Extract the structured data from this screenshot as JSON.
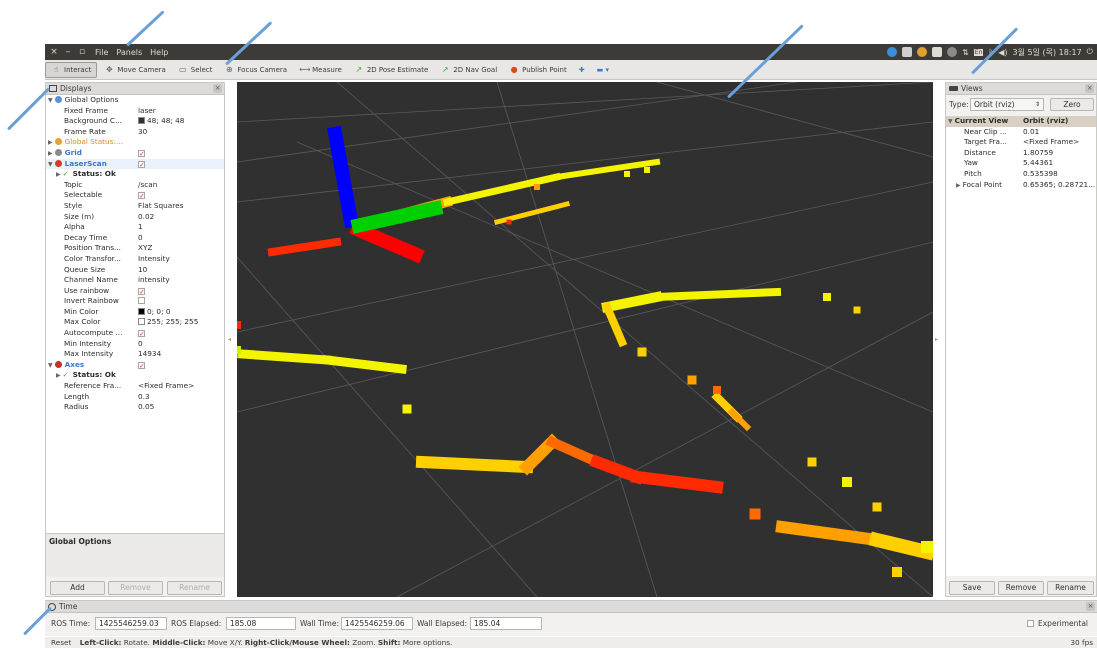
{
  "window": {
    "controls": [
      "×",
      "–",
      "▫"
    ],
    "menu": [
      "File",
      "Panels",
      "Help"
    ],
    "tray": {
      "lang": "En",
      "clock": "3월 5일 (목) 18:17"
    }
  },
  "toolbar": {
    "tools": [
      {
        "label": "Interact",
        "icon": "hand-icon",
        "glyph": "☝",
        "active": true
      },
      {
        "label": "Move Camera",
        "icon": "move-camera-icon",
        "glyph": "✥",
        "active": false
      },
      {
        "label": "Select",
        "icon": "select-icon",
        "glyph": "▭",
        "active": false
      },
      {
        "label": "Focus Camera",
        "icon": "focus-camera-icon",
        "glyph": "⊕",
        "active": false
      },
      {
        "label": "Measure",
        "icon": "measure-icon",
        "glyph": "⟷",
        "active": false
      },
      {
        "label": "2D Pose Estimate",
        "icon": "pose-estimate-icon",
        "glyph": "↗",
        "active": false
      },
      {
        "label": "2D Nav Goal",
        "icon": "nav-goal-icon",
        "glyph": "↗",
        "active": false
      },
      {
        "label": "Publish Point",
        "icon": "publish-point-icon",
        "glyph": "●",
        "active": false
      }
    ],
    "extra_glyph": "✚",
    "more_glyph": "▬ ▾"
  },
  "displays": {
    "title": "Displays",
    "rows": [
      {
        "indent": 0,
        "marker": "▼",
        "iconc": "#5b8fd6",
        "key": "Global Options",
        "val": "",
        "color": "#2b2b2b"
      },
      {
        "indent": 2,
        "key": "Fixed Frame",
        "val": "laser"
      },
      {
        "indent": 2,
        "key": "Background C...",
        "val": "48; 48; 48",
        "swatch": "#303030"
      },
      {
        "indent": 2,
        "key": "Frame Rate",
        "val": "30"
      },
      {
        "indent": 0,
        "marker": "▶",
        "iconc": "#e8a030",
        "key": "Global Status:...",
        "val": "",
        "color": "#d98a1a"
      },
      {
        "indent": 0,
        "marker": "▶",
        "iconc": "#8a8a8a",
        "key": "Grid",
        "val": "",
        "check": true,
        "color": "#3a78c8",
        "bold": true
      },
      {
        "indent": 0,
        "marker": "▼",
        "iconc": "#d23b2a",
        "key": "LaserScan",
        "val": "",
        "check": true,
        "color": "#3a78c8",
        "bold": true,
        "highlight": true
      },
      {
        "indent": 1,
        "marker": "▶",
        "iconc": "#3a9a3a",
        "key": "Status: Ok",
        "val": "",
        "bold": true,
        "tick": true
      },
      {
        "indent": 2,
        "key": "Topic",
        "val": "/scan"
      },
      {
        "indent": 2,
        "key": "Selectable",
        "val": "",
        "check": true
      },
      {
        "indent": 2,
        "key": "Style",
        "val": "Flat Squares"
      },
      {
        "indent": 2,
        "key": "Size (m)",
        "val": "0.02"
      },
      {
        "indent": 2,
        "key": "Alpha",
        "val": "1"
      },
      {
        "indent": 2,
        "key": "Decay Time",
        "val": "0"
      },
      {
        "indent": 2,
        "key": "Position Trans...",
        "val": "XYZ"
      },
      {
        "indent": 2,
        "key": "Color Transfor...",
        "val": "Intensity"
      },
      {
        "indent": 2,
        "key": "Queue Size",
        "val": "10"
      },
      {
        "indent": 2,
        "key": "Channel Name",
        "val": "intensity"
      },
      {
        "indent": 2,
        "key": "Use rainbow",
        "val": "",
        "check": true
      },
      {
        "indent": 2,
        "key": "Invert Rainbow",
        "val": "",
        "check": false
      },
      {
        "indent": 2,
        "key": "Min Color",
        "val": "0; 0; 0",
        "swatch": "#000000"
      },
      {
        "indent": 2,
        "key": "Max Color",
        "val": "255; 255; 255",
        "swatch": "#ffffff"
      },
      {
        "indent": 2,
        "key": "Autocompute ...",
        "val": "",
        "check": true
      },
      {
        "indent": 2,
        "key": "Min Intensity",
        "val": "0"
      },
      {
        "indent": 2,
        "key": "Max Intensity",
        "val": "14934"
      },
      {
        "indent": 0,
        "marker": "▼",
        "iconc": "#c83030",
        "key": "Axes",
        "val": "",
        "check": true,
        "color": "#3a78c8",
        "bold": true
      },
      {
        "indent": 1,
        "marker": "▶",
        "iconc": "#3a9a3a",
        "key": "Status: Ok",
        "val": "",
        "bold": true,
        "tick": true
      },
      {
        "indent": 2,
        "key": "Reference Fra...",
        "val": "<Fixed Frame>"
      },
      {
        "indent": 2,
        "key": "Length",
        "val": "0.3"
      },
      {
        "indent": 2,
        "key": "Radius",
        "val": "0.05"
      }
    ],
    "description_title": "Global Options",
    "add": "Add",
    "remove": "Remove",
    "rename": "Rename"
  },
  "views": {
    "title": "Views",
    "type_label": "Type:",
    "type_value": "Orbit (rviz)",
    "zero": "Zero",
    "rows": [
      {
        "indent": 0,
        "marker": "▼",
        "key": "Current View",
        "val": "Orbit (rviz)",
        "header": true
      },
      {
        "indent": 2,
        "key": "Near Clip ...",
        "val": "0.01"
      },
      {
        "indent": 2,
        "key": "Target Fra...",
        "val": "<Fixed Frame>"
      },
      {
        "indent": 2,
        "key": "Distance",
        "val": "1.80759"
      },
      {
        "indent": 2,
        "key": "Yaw",
        "val": "5.44361"
      },
      {
        "indent": 2,
        "key": "Pitch",
        "val": "0.535398"
      },
      {
        "indent": 1,
        "marker": "▶",
        "key": "Focal Point",
        "val": "0.65365; 0.28721..."
      }
    ],
    "save": "Save",
    "remove": "Remove",
    "rename": "Rename"
  },
  "time": {
    "title": "Time",
    "ros_time_label": "ROS Time:",
    "ros_time": "1425546259.03",
    "ros_elapsed_label": "ROS Elapsed:",
    "ros_elapsed": "185.08",
    "wall_time_label": "Wall Time:",
    "wall_time": "1425546259.06",
    "wall_elapsed_label": "Wall Elapsed:",
    "wall_elapsed": "185.04",
    "experimental": "Experimental"
  },
  "status": {
    "reset": "Reset",
    "b1": "Left-Click:",
    "t1": " Rotate. ",
    "b2": "Middle-Click:",
    "t2": " Move X/Y. ",
    "b3": "Right-Click/Mouse Wheel:",
    "t3": " Zoom. ",
    "b4": "Shift:",
    "t4": " More options.",
    "fps": "30 fps"
  },
  "colors": {
    "scan_colors": [
      "#ff2a00",
      "#ff6a00",
      "#ffa000",
      "#ffd000",
      "#f4f400",
      "#c8f000"
    ],
    "axis_x": "#ff0000",
    "axis_y": "#00d000",
    "axis_z": "#0000ff"
  }
}
